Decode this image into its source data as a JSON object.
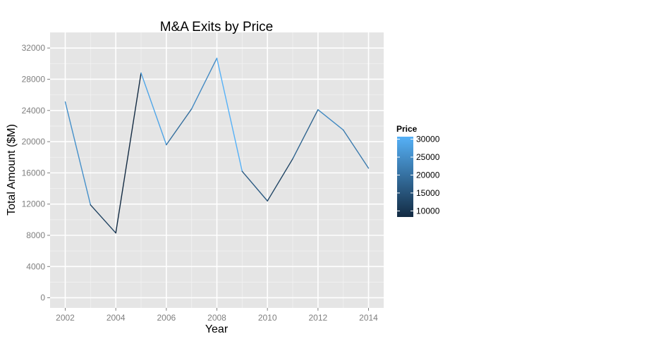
{
  "chart_data": {
    "type": "line",
    "title": "M&A Exits by Price",
    "xlabel": "Year",
    "ylabel": "Total Amount ($M)",
    "x": [
      2002,
      2003,
      2004,
      2005,
      2006,
      2007,
      2008,
      2009,
      2010,
      2011,
      2012,
      2013,
      2014
    ],
    "values": [
      25100,
      11900,
      8300,
      28800,
      19600,
      24200,
      30700,
      16200,
      12400,
      17800,
      24100,
      21500,
      16600
    ],
    "xlim": [
      2001.4,
      2014.6
    ],
    "ylim": [
      -1300,
      34000
    ],
    "xticks": [
      "2002",
      "2004",
      "2006",
      "2008",
      "2010",
      "2012",
      "2014"
    ],
    "yticks": [
      "0",
      "4000",
      "8000",
      "12000",
      "16000",
      "20000",
      "24000",
      "28000",
      "32000"
    ],
    "grid": true,
    "legend": {
      "title": "Price",
      "position": "right",
      "labels": [
        "30000",
        "25000",
        "20000",
        "15000",
        "10000"
      ],
      "scale_min": 8300,
      "scale_max": 30700,
      "color_low": "#132B43",
      "color_high": "#56B1F7"
    },
    "colors": {
      "panel_background": "#e5e5e5",
      "grid_major": "#ffffff",
      "grid_minor": "#f2f2f2"
    }
  }
}
